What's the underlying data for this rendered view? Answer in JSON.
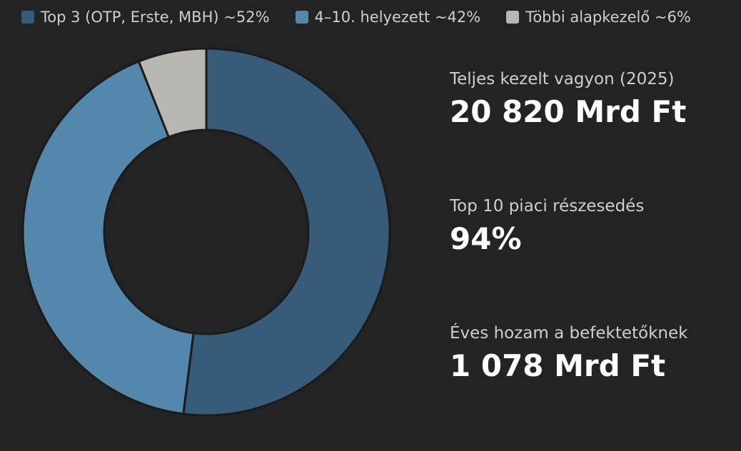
{
  "chart_data": {
    "type": "donut",
    "series": [
      {
        "name": "Top 3 (OTP, Erste, MBH) ~52%",
        "color": "#385b7a",
        "value": 52
      },
      {
        "name": "4–10. helyezett ~42%",
        "color": "#5387ab",
        "value": 42
      },
      {
        "name": "Többi alapkezelő ~6%",
        "color": "#b9b7b1",
        "value": 6
      }
    ],
    "legend": "top"
  },
  "stats": [
    {
      "label": "Teljes kezelt vagyon (2025)",
      "value": "20 820 Mrd Ft"
    },
    {
      "label": "Top 10 piaci részesedés",
      "value": "94%"
    },
    {
      "label": "Éves hozam a befektetőknek",
      "value": "1 078 Mrd Ft"
    }
  ]
}
